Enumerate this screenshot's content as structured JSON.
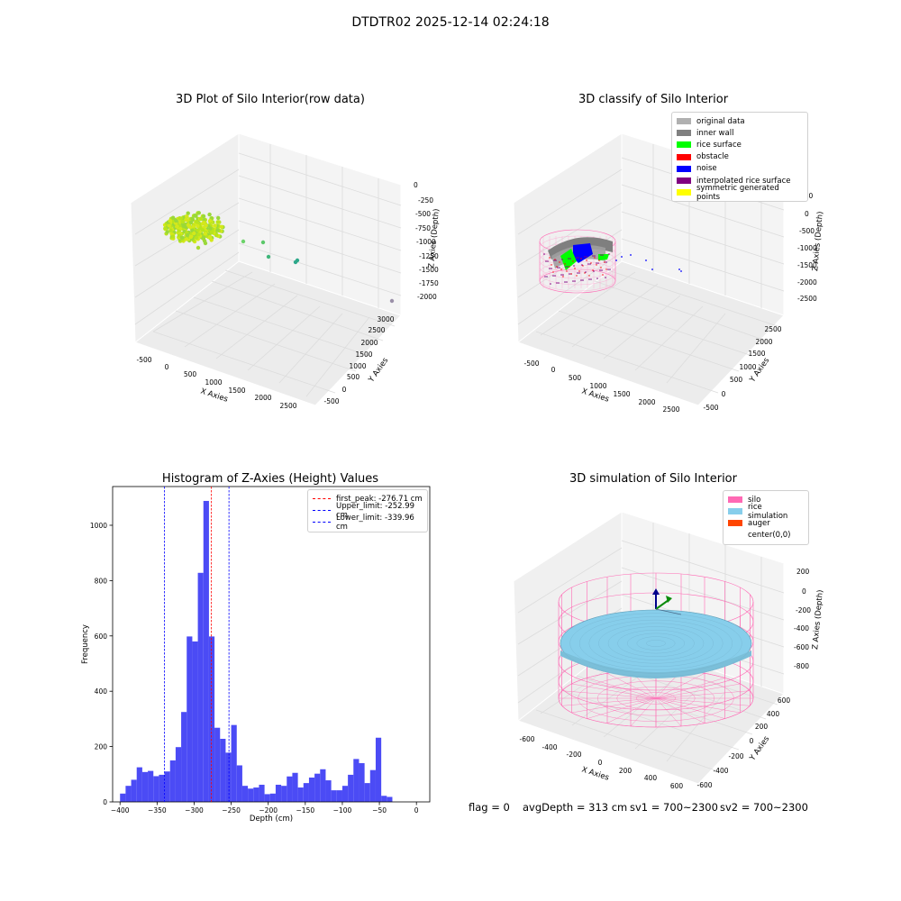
{
  "figure_title": "DTDTR02 2025-12-14 02:24:18",
  "panels": {
    "raw": {
      "title": "3D Plot of Silo Interior(row data)",
      "x_label": "X Axies",
      "y_label": "Y Axies",
      "z_label": "Z Axies (Depth)",
      "x_ticks": [
        "-500",
        "0",
        "500",
        "1000",
        "1500",
        "2000",
        "2500"
      ],
      "y_ticks": [
        "-500",
        "0",
        "500",
        "1000",
        "1500",
        "2000",
        "2500",
        "3000"
      ],
      "z_ticks": [
        "0",
        "-250",
        "-500",
        "-750",
        "-1000",
        "-1250",
        "-1500",
        "-1750",
        "-2000"
      ]
    },
    "classify": {
      "title": "3D classify of Silo Interior",
      "x_label": "X Axies",
      "y_label": "Y Axies",
      "z_label": "Z Axies (Depth)",
      "x_ticks": [
        "-500",
        "0",
        "500",
        "1000",
        "1500",
        "2000",
        "2500"
      ],
      "y_ticks": [
        "-500",
        "0",
        "500",
        "1000",
        "1500",
        "2000",
        "2500"
      ],
      "z_ticks": [
        "500",
        "0",
        "-500",
        "-1000",
        "-1500",
        "-2000",
        "-2500"
      ],
      "legend": [
        {
          "label": "original data",
          "color": "#b0b0b0"
        },
        {
          "label": "inner wall",
          "color": "#808080"
        },
        {
          "label": "rice surface",
          "color": "#00ff00"
        },
        {
          "label": "obstacle",
          "color": "#ff0000"
        },
        {
          "label": "noise",
          "color": "#0000ff"
        },
        {
          "label": "interpolated rice surface",
          "color": "#800080"
        },
        {
          "label": "symmetric generated points",
          "color": "#ffff00"
        }
      ]
    },
    "simulation": {
      "title": "3D simulation of Silo Interior",
      "x_label": "X Axies",
      "y_label": "Y Axies",
      "z_label": "Z Axies (Depth)",
      "x_ticks": [
        "-600",
        "-400",
        "-200",
        "0",
        "200",
        "400",
        "600"
      ],
      "y_ticks": [
        "-600",
        "-400",
        "-200",
        "0",
        "200",
        "400",
        "600"
      ],
      "z_ticks": [
        "200",
        "0",
        "-200",
        "-400",
        "-600",
        "-800"
      ],
      "legend": [
        {
          "label": "silo",
          "color": "#ff69b4"
        },
        {
          "label": "rice simulation",
          "color": "#87ceeb"
        },
        {
          "label": "auger",
          "color": "#ff4500"
        },
        {
          "label": "center(0,0)",
          "color": "#ffffff"
        }
      ]
    }
  },
  "status": {
    "flag": "flag = 0",
    "avg_depth": "avgDepth = 313 cm",
    "sv1": "sv1 = 700~2300",
    "sv2": "sv2 = 700~2300"
  },
  "chart_data": [
    {
      "type": "bar",
      "title": "Histogram of Z-Axies (Height) Values",
      "xlabel": "Depth (cm)",
      "ylabel": "Frequency",
      "xlim": [
        -410,
        18
      ],
      "ylim": [
        0,
        1140
      ],
      "x_ticks": [
        -400,
        -350,
        -300,
        -250,
        -200,
        -150,
        -100,
        -50,
        0
      ],
      "y_ticks": [
        0,
        200,
        400,
        600,
        800,
        1000
      ],
      "bin_width": 7.5,
      "bin_start": -400,
      "bar_color": "#4b4bf5",
      "values": [
        30,
        58,
        80,
        125,
        108,
        112,
        93,
        98,
        110,
        150,
        198,
        325,
        598,
        580,
        828,
        1088,
        598,
        268,
        228,
        178,
        278,
        132,
        58,
        48,
        52,
        62,
        28,
        30,
        62,
        58,
        92,
        105,
        52,
        68,
        88,
        102,
        118,
        78,
        42,
        42,
        58,
        98,
        155,
        140,
        68,
        115,
        232,
        22,
        18
      ],
      "reference_lines": [
        {
          "label": "first_peak: -276.71 cm",
          "value": -276.71,
          "color": "#ff0000"
        },
        {
          "label": "Upper_limit: -252.99 cm",
          "value": -252.99,
          "color": "#0000ff"
        },
        {
          "label": "Lower_limit: -339.96 cm",
          "value": -339.96,
          "color": "#0000ff"
        }
      ],
      "legend_placement": "top-right"
    }
  ]
}
